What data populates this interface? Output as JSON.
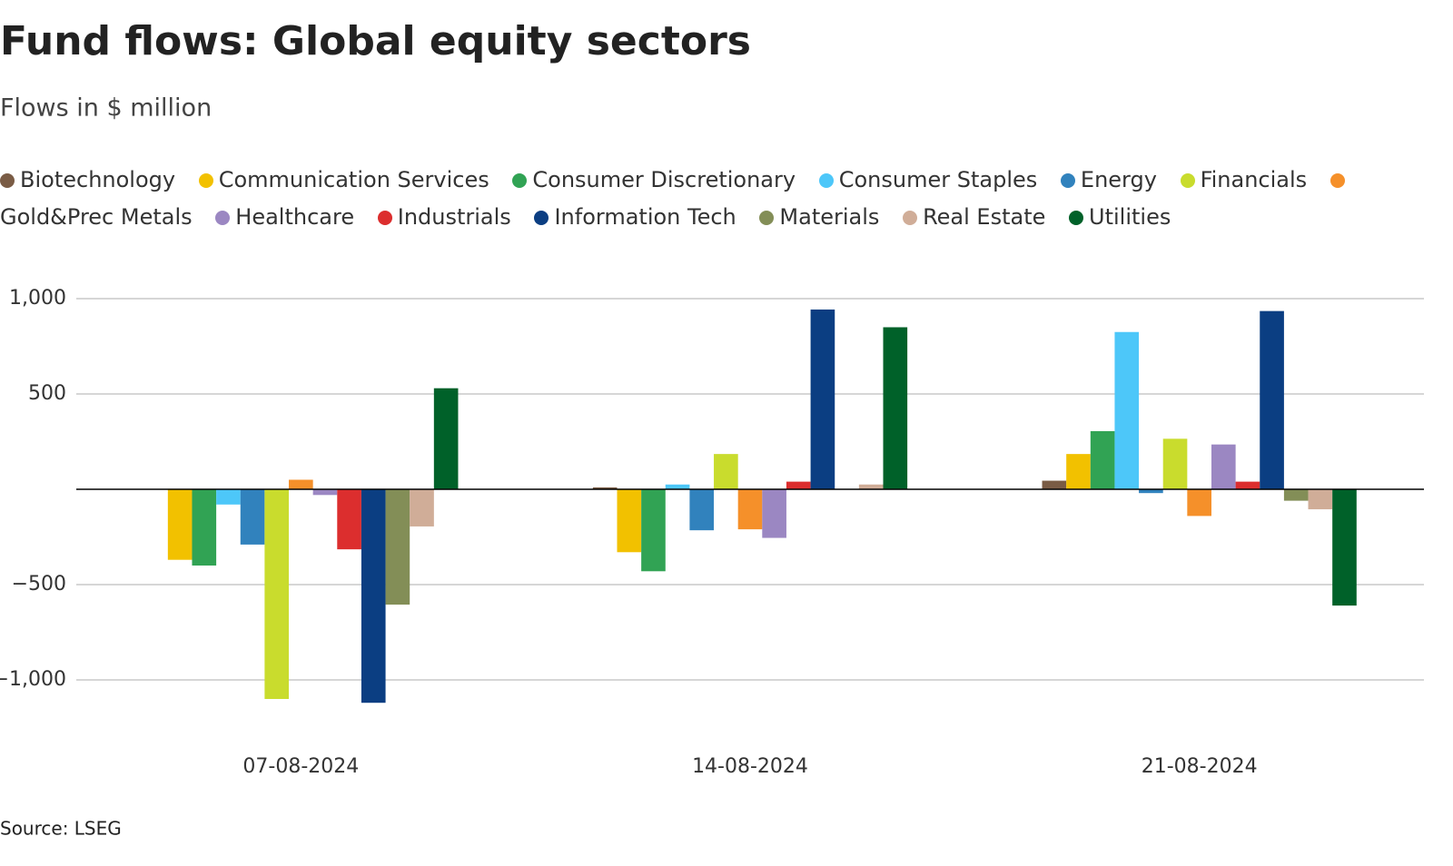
{
  "chart_data": {
    "type": "bar",
    "title": "Fund flows: Global equity sectors",
    "subtitle": "Flows in $ million",
    "source": "Source: LSEG",
    "categories": [
      "07-08-2024",
      "14-08-2024",
      "21-08-2024"
    ],
    "series": [
      {
        "name": "Biotechnology",
        "color": "#7a5c45",
        "values": [
          0,
          10,
          45
        ]
      },
      {
        "name": "Communication Services",
        "color": "#f2c100",
        "values": [
          -370,
          -330,
          185
        ]
      },
      {
        "name": "Consumer Discretionary",
        "color": "#31a354",
        "values": [
          -400,
          -430,
          305
        ]
      },
      {
        "name": "Consumer Staples",
        "color": "#4dc7f9",
        "values": [
          -80,
          25,
          825
        ]
      },
      {
        "name": "Energy",
        "color": "#3182bd",
        "values": [
          -290,
          -215,
          -20
        ]
      },
      {
        "name": "Financials",
        "color": "#c9dc2d",
        "values": [
          -1100,
          185,
          265
        ]
      },
      {
        "name": "Gold&Prec Metals",
        "color": "#f5902a",
        "values": [
          50,
          -210,
          -140
        ]
      },
      {
        "name": "Healthcare",
        "color": "#9b87c2",
        "values": [
          -30,
          -255,
          235
        ]
      },
      {
        "name": "Industrials",
        "color": "#dc2e2e",
        "values": [
          -315,
          40,
          40
        ]
      },
      {
        "name": "Information Tech",
        "color": "#0b3e82",
        "values": [
          -1120,
          943,
          935
        ]
      },
      {
        "name": "Materials",
        "color": "#838e57",
        "values": [
          -605,
          0,
          -60
        ]
      },
      {
        "name": "Real Estate",
        "color": "#d0ad98",
        "values": [
          -195,
          25,
          -105
        ]
      },
      {
        "name": "Utilities",
        "color": "#006129",
        "values": [
          530,
          850,
          -610
        ]
      }
    ],
    "ylim": [
      -1250,
      1000
    ],
    "yticks": [
      {
        "value": 1000,
        "label": "1,000"
      },
      500,
      {
        "value": -500,
        "label": "−500"
      },
      {
        "value": -1000,
        "label": "−1,000"
      }
    ],
    "grid": true
  }
}
